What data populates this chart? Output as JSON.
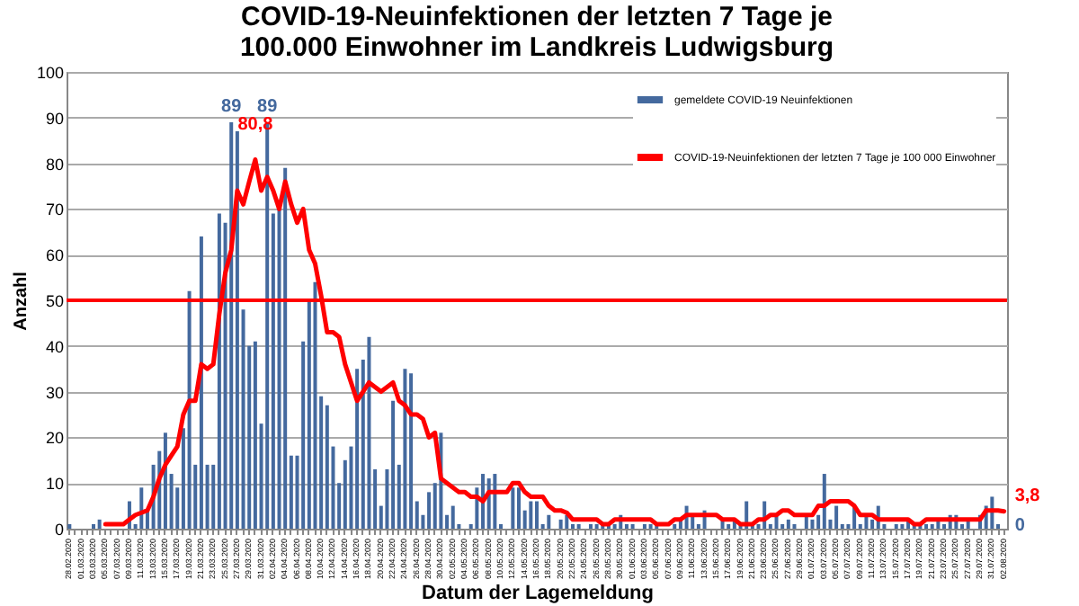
{
  "chart_data": {
    "type": "bar",
    "title": [
      "COVID-19-Neuinfektionen der letzten 7 Tage je",
      "100.000 Einwohner im Landkreis Ludwigsburg"
    ],
    "xlabel": "Datum der Lagemeldung",
    "ylabel": "Anzahl",
    "categories": [
      "28.02.2020",
      null,
      "01.03.2020",
      null,
      "03.03.2020",
      null,
      "05.03.2020",
      null,
      "07.03.2020",
      null,
      "09.03.2020",
      null,
      "11.03.2020",
      null,
      "13.03.2020",
      null,
      "15.03.2020",
      null,
      "17.03.2020",
      null,
      "19.03.2020",
      null,
      "21.03.2020",
      null,
      "23.03.2020",
      null,
      "25.03.2020",
      null,
      "27.03.2020",
      null,
      "29.03.2020",
      null,
      "31.03.2020",
      null,
      "02.04.2020",
      null,
      "04.04.2020",
      null,
      "06.04.2020",
      null,
      "08.04.2020",
      null,
      "10.04.2020",
      null,
      "12.04.2020",
      null,
      "14.04.2020",
      null,
      "16.04.2020",
      null,
      "18.04.2020",
      null,
      "20.04.2020",
      null,
      "22.04.2020",
      null,
      "24.04.2020",
      null,
      "26.04.2020",
      null,
      "28.04.2020",
      null,
      "30.04.2020",
      null,
      "02.05.2020",
      null,
      "04.05.2020",
      null,
      "06.05.2020",
      null,
      "08.05.2020",
      null,
      "10.05.2020",
      null,
      "12.05.2020",
      null,
      "14.05.2020",
      null,
      "16.05.2020",
      null,
      "18.05.2020",
      null,
      "20.05.2020",
      null,
      "22.05.2020",
      null,
      "24.05.2020",
      null,
      "26.05.2020",
      null,
      "28.05.2020",
      null,
      "30.05.2020",
      null,
      "01.06.2020",
      null,
      "03.06.2020",
      null,
      "05.06.2020",
      null,
      "07.06.2020",
      null,
      "09.06.2020",
      null,
      "11.06.2020",
      null,
      "13.06.2020",
      null,
      "15.06.2020",
      null,
      "17.06.2020",
      null,
      "19.06.2020",
      null,
      "21.06.2020",
      null,
      "23.06.2020",
      null,
      "25.06.2020",
      null,
      "27.06.2020",
      null,
      "29.06.2020",
      null,
      "01.07.2020",
      null,
      "03.07.2020",
      null,
      "05.07.2020",
      null,
      "07.07.2020",
      null,
      "09.07.2020",
      null,
      "11.07.2020",
      null,
      "13.07.2020",
      null,
      "15.07.2020",
      null,
      "17.07.2020",
      null,
      "19.07.2020",
      null,
      "21.07.2020",
      null,
      "23.07.2020",
      null,
      "25.07.2020",
      null,
      "27.07.2020",
      null,
      "29.07.2020",
      null,
      "31.07.2020",
      null,
      "02.08.2020"
    ],
    "series": [
      {
        "name": "gemeldete COVID-19 Neuinfektionen",
        "color": "#44699e",
        "values": [
          1,
          0,
          0,
          0,
          1,
          2,
          0,
          0,
          0,
          0,
          6,
          1,
          9,
          4,
          14,
          17,
          21,
          12,
          9,
          22,
          52,
          14,
          64,
          14,
          14,
          69,
          67,
          89,
          87,
          48,
          40,
          41,
          23,
          89,
          69,
          70,
          79,
          16,
          16,
          41,
          50,
          54,
          29,
          27,
          18,
          10,
          15,
          18,
          35,
          37,
          42,
          13,
          5,
          13,
          28,
          14,
          35,
          34,
          6,
          3,
          8,
          10,
          21,
          3,
          5,
          1,
          0,
          1,
          9,
          12,
          11,
          12,
          1,
          0,
          9,
          9,
          4,
          6,
          6,
          1,
          3,
          0,
          2,
          3,
          1,
          1,
          0,
          1,
          1,
          1,
          1,
          1,
          3,
          1,
          1,
          0,
          1,
          1,
          1,
          0,
          0,
          1,
          2,
          5,
          3,
          1,
          4,
          0,
          0,
          2,
          1,
          2,
          1,
          6,
          1,
          1,
          6,
          1,
          3,
          1,
          2,
          1,
          0,
          3,
          2,
          3,
          12,
          2,
          5,
          1,
          1,
          5,
          1,
          3,
          2,
          5,
          1,
          0,
          1,
          1,
          2,
          1,
          1,
          1,
          1,
          2,
          1,
          3,
          3,
          1,
          2,
          0,
          3,
          5,
          7,
          1,
          0
        ],
        "value_labels": [
          null,
          null,
          null,
          null,
          null,
          null,
          null,
          null,
          null,
          null,
          null,
          null,
          null,
          null,
          null,
          null,
          null,
          null,
          null,
          null,
          null,
          null,
          null,
          null,
          null,
          null,
          null,
          "89",
          null,
          null,
          null,
          null,
          null,
          "89",
          null,
          null,
          null,
          null,
          null,
          null,
          null,
          null,
          null,
          null,
          null,
          null,
          null,
          null,
          null,
          null,
          null,
          null,
          null,
          null,
          null,
          null,
          null,
          null,
          null,
          null,
          null,
          null,
          null,
          null,
          null,
          null,
          null,
          null,
          null,
          null,
          null,
          null,
          null,
          null,
          null,
          null,
          null,
          null,
          null,
          null,
          null,
          null,
          null,
          null,
          null,
          null,
          null,
          null,
          null,
          null,
          null,
          null,
          null,
          null,
          null,
          null,
          null,
          null,
          null,
          null,
          null,
          null,
          null,
          null,
          null,
          null,
          null,
          null,
          null,
          null,
          null,
          null,
          null,
          null,
          null,
          null,
          null,
          null,
          null,
          null,
          null,
          null,
          null,
          null,
          null,
          null,
          null,
          null,
          null,
          null,
          null,
          null,
          null,
          null,
          null,
          null,
          null,
          null,
          null,
          null,
          null,
          null,
          null,
          null,
          null,
          null,
          null,
          null,
          null,
          null,
          null,
          null,
          null,
          null,
          null,
          null,
          "0"
        ]
      },
      {
        "name": "COVID-19-Neuinfektionen der letzten 7 Tage je 100 000 Einwohner",
        "type": "line",
        "color": "#ff0000",
        "line_style": "solid",
        "values": [
          null,
          null,
          null,
          null,
          null,
          null,
          1,
          1,
          1,
          1,
          2,
          3,
          3.5,
          4,
          7,
          11,
          14,
          16,
          18,
          25,
          28,
          28,
          36,
          35,
          36,
          47,
          56,
          61,
          74,
          71,
          76,
          80.8,
          74,
          77,
          74,
          70,
          76,
          71,
          67,
          70,
          61,
          58,
          51,
          43,
          43,
          42,
          36,
          32,
          28,
          30,
          32,
          31,
          30,
          31,
          32,
          28,
          27,
          25,
          25,
          24,
          20,
          21,
          11,
          10,
          9,
          8,
          8,
          7,
          7,
          6,
          8,
          8,
          8,
          8,
          10,
          10,
          8,
          7,
          7,
          7,
          5,
          4,
          4,
          3.5,
          2,
          2,
          2,
          2,
          2,
          1,
          1,
          2,
          2,
          2,
          2,
          2,
          2,
          2,
          1,
          1,
          1,
          2,
          2,
          3,
          3,
          3,
          3,
          3,
          3,
          2,
          2,
          2,
          1,
          1,
          1,
          2,
          2,
          3,
          3,
          4,
          4,
          3,
          3,
          3,
          3,
          5,
          5,
          6,
          6,
          6,
          6,
          5,
          3,
          3,
          3,
          2,
          2,
          2,
          2,
          2,
          2,
          1,
          1,
          2,
          2,
          2,
          2,
          2,
          2,
          2,
          2,
          2,
          2,
          4,
          4,
          4,
          3.8
        ],
        "value_labels": [
          null,
          null,
          null,
          null,
          null,
          null,
          null,
          null,
          null,
          null,
          null,
          null,
          null,
          null,
          null,
          null,
          null,
          null,
          null,
          null,
          null,
          null,
          null,
          null,
          null,
          null,
          null,
          null,
          null,
          null,
          null,
          "80,8",
          null,
          null,
          null,
          null,
          null,
          null,
          null,
          null,
          null,
          null,
          null,
          null,
          null,
          null,
          null,
          null,
          null,
          null,
          null,
          null,
          null,
          null,
          null,
          null,
          null,
          null,
          null,
          null,
          null,
          null,
          null,
          null,
          null,
          null,
          null,
          null,
          null,
          null,
          null,
          null,
          null,
          null,
          null,
          null,
          null,
          null,
          null,
          null,
          null,
          null,
          null,
          null,
          null,
          null,
          null,
          null,
          null,
          null,
          null,
          null,
          null,
          null,
          null,
          null,
          null,
          null,
          null,
          null,
          null,
          null,
          null,
          null,
          null,
          null,
          null,
          null,
          null,
          null,
          null,
          null,
          null,
          null,
          null,
          null,
          null,
          null,
          null,
          null,
          null,
          null,
          null,
          null,
          null,
          null,
          null,
          null,
          null,
          null,
          null,
          null,
          null,
          null,
          null,
          null,
          null,
          null,
          null,
          null,
          null,
          null,
          null,
          null,
          null,
          null,
          null,
          null,
          null,
          null,
          null,
          null,
          null,
          null,
          null,
          null,
          "3,8"
        ]
      }
    ],
    "ylim": [
      0,
      100
    ],
    "yticks": [
      0,
      10,
      20,
      30,
      40,
      50,
      60,
      70,
      80,
      90,
      100
    ],
    "grid": "y",
    "ref_lines": [
      {
        "axis": "y",
        "value": 50,
        "color": "#ff0000"
      }
    ],
    "legend": "top right"
  }
}
